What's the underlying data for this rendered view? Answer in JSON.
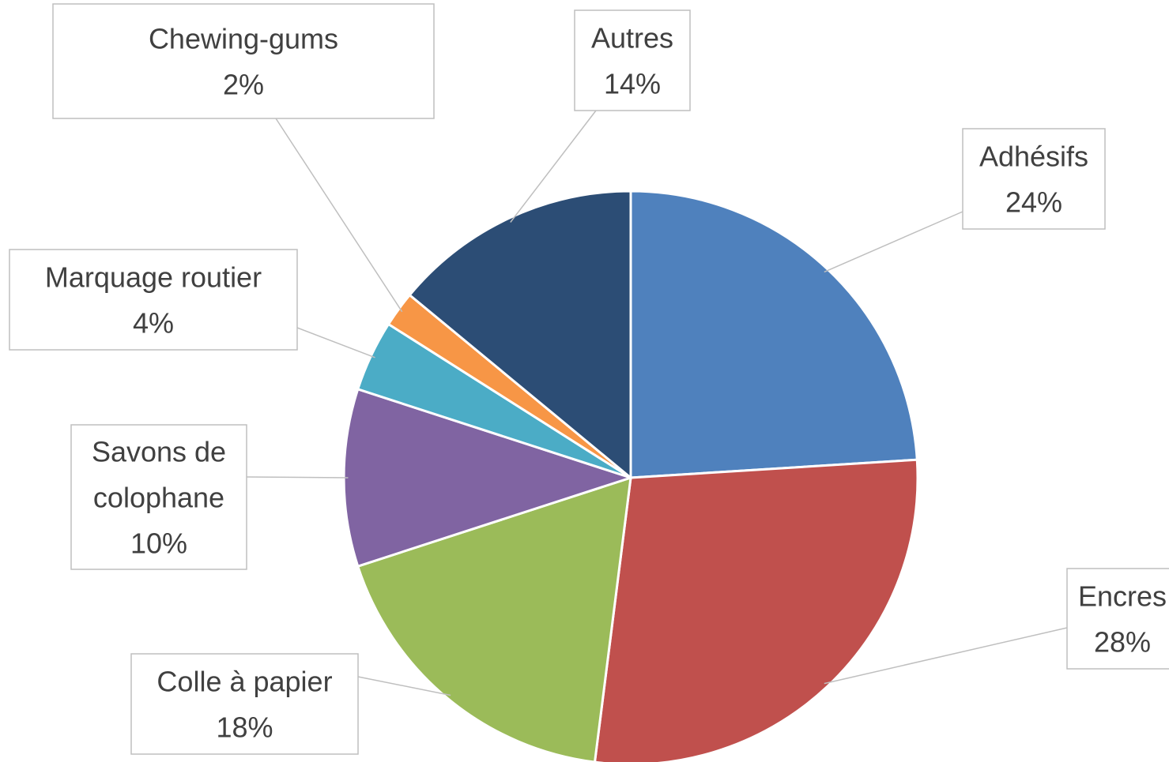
{
  "chart_data": {
    "type": "pie",
    "title": "",
    "start_angle_deg": 0,
    "direction": "clockwise",
    "slices": [
      {
        "label": "Adhésifs",
        "value": 24,
        "pct_text": "24%",
        "color": "#4f81bd"
      },
      {
        "label": "Encres",
        "value": 28,
        "pct_text": "28%",
        "color": "#c0504d"
      },
      {
        "label": "Colle à papier",
        "value": 18,
        "pct_text": "18%",
        "color": "#9bbb59"
      },
      {
        "label": "Savons de colophane",
        "value": 10,
        "pct_text": "10%",
        "color": "#8064a2"
      },
      {
        "label": "Marquage routier",
        "value": 4,
        "pct_text": "4%",
        "color": "#4bacc6"
      },
      {
        "label": "Chewing-gums",
        "value": 2,
        "pct_text": "2%",
        "color": "#f79646"
      },
      {
        "label": "Autres",
        "value": 14,
        "pct_text": "14%",
        "color": "#2c4d75"
      }
    ],
    "legend": "none",
    "data_labels": "outside with leader lines"
  }
}
